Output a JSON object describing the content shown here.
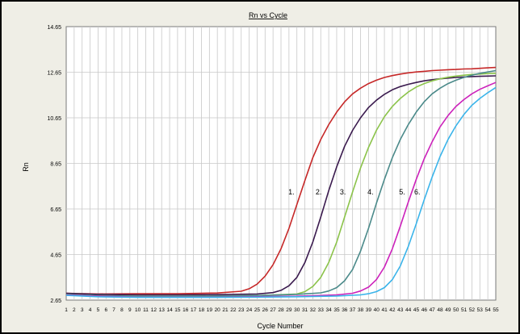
{
  "chart_data": {
    "type": "line",
    "title": "Rn vs Cycle",
    "xlabel": "Cycle Number",
    "ylabel": "Rn",
    "xlim": [
      1,
      55
    ],
    "ylim": [
      2.65,
      14.65
    ],
    "yticks": [
      "14.65",
      "12.65",
      "10.65",
      "8.65",
      "6.65",
      "4.65",
      "2.65"
    ],
    "xticks": [
      "1",
      "2",
      "3",
      "4",
      "5",
      "6",
      "7",
      "8",
      "9",
      "10",
      "11",
      "12",
      "13",
      "14",
      "15",
      "16",
      "17",
      "18",
      "19",
      "20",
      "21",
      "22",
      "23",
      "24",
      "25",
      "26",
      "27",
      "28",
      "29",
      "30",
      "31",
      "32",
      "33",
      "34",
      "35",
      "36",
      "37",
      "38",
      "39",
      "40",
      "41",
      "42",
      "43",
      "44",
      "45",
      "46",
      "47",
      "48",
      "49",
      "50",
      "51",
      "52",
      "53",
      "54",
      "55"
    ],
    "grid": true,
    "series": [
      {
        "label": "1.",
        "color": "#c62828",
        "x": [
          1,
          5,
          10,
          15,
          20,
          23,
          24,
          25,
          26,
          27,
          28,
          29,
          30,
          31,
          32,
          33,
          34,
          35,
          36,
          37,
          38,
          39,
          40,
          41,
          42,
          43,
          44,
          45,
          46,
          47,
          48,
          49,
          50,
          51,
          52,
          53,
          54,
          55
        ],
        "values": [
          2.95,
          2.92,
          2.93,
          2.93,
          2.96,
          3.04,
          3.15,
          3.35,
          3.7,
          4.2,
          4.9,
          5.8,
          6.85,
          7.9,
          8.9,
          9.7,
          10.35,
          10.9,
          11.35,
          11.7,
          11.95,
          12.15,
          12.3,
          12.42,
          12.5,
          12.57,
          12.62,
          12.66,
          12.69,
          12.72,
          12.74,
          12.76,
          12.77,
          12.79,
          12.8,
          12.82,
          12.84,
          12.86
        ]
      },
      {
        "label": "2.",
        "color": "#3a1a4e",
        "x": [
          1,
          5,
          10,
          15,
          20,
          25,
          27,
          28,
          29,
          30,
          31,
          32,
          33,
          34,
          35,
          36,
          37,
          38,
          39,
          40,
          41,
          42,
          43,
          44,
          45,
          46,
          47,
          48,
          49,
          50,
          51,
          52,
          53,
          54,
          55
        ],
        "values": [
          2.95,
          2.9,
          2.88,
          2.88,
          2.89,
          2.92,
          2.98,
          3.08,
          3.28,
          3.65,
          4.3,
          5.2,
          6.3,
          7.45,
          8.5,
          9.4,
          10.1,
          10.65,
          11.1,
          11.42,
          11.68,
          11.88,
          12.02,
          12.12,
          12.2,
          12.27,
          12.32,
          12.36,
          12.39,
          12.42,
          12.44,
          12.46,
          12.47,
          12.48,
          12.49
        ]
      },
      {
        "label": "3.",
        "color": "#8bc34a",
        "x": [
          1,
          5,
          10,
          15,
          20,
          25,
          30,
          31,
          32,
          33,
          34,
          35,
          36,
          37,
          38,
          39,
          40,
          41,
          42,
          43,
          44,
          45,
          46,
          47,
          48,
          49,
          50,
          51,
          52,
          53,
          54,
          55
        ],
        "values": [
          2.9,
          2.85,
          2.82,
          2.82,
          2.83,
          2.85,
          2.92,
          3.02,
          3.25,
          3.65,
          4.3,
          5.2,
          6.3,
          7.4,
          8.45,
          9.35,
          10.1,
          10.7,
          11.15,
          11.5,
          11.78,
          12.0,
          12.15,
          12.27,
          12.36,
          12.43,
          12.48,
          12.52,
          12.55,
          12.57,
          12.59,
          12.6
        ]
      },
      {
        "label": "4.",
        "color": "#4b8a8a",
        "x": [
          1,
          5,
          10,
          15,
          20,
          25,
          30,
          33,
          34,
          35,
          36,
          37,
          38,
          39,
          40,
          41,
          42,
          43,
          44,
          45,
          46,
          47,
          48,
          49,
          50,
          51,
          52,
          53,
          54,
          55
        ],
        "values": [
          2.9,
          2.85,
          2.82,
          2.82,
          2.83,
          2.85,
          2.9,
          2.97,
          3.05,
          3.2,
          3.5,
          4.0,
          4.8,
          5.8,
          6.9,
          7.95,
          8.9,
          9.7,
          10.35,
          10.9,
          11.35,
          11.7,
          11.95,
          12.15,
          12.3,
          12.42,
          12.52,
          12.6,
          12.66,
          12.72
        ]
      },
      {
        "label": "5.",
        "color": "#cc22bb",
        "x": [
          1,
          5,
          10,
          15,
          20,
          25,
          30,
          35,
          37,
          38,
          39,
          40,
          41,
          42,
          43,
          44,
          45,
          46,
          47,
          48,
          49,
          50,
          51,
          52,
          53,
          54,
          55
        ],
        "values": [
          2.88,
          2.82,
          2.78,
          2.78,
          2.78,
          2.8,
          2.82,
          2.88,
          2.95,
          3.05,
          3.22,
          3.55,
          4.1,
          4.9,
          5.9,
          6.95,
          7.95,
          8.85,
          9.6,
          10.25,
          10.75,
          11.15,
          11.45,
          11.7,
          11.9,
          12.05,
          12.2
        ]
      },
      {
        "label": "6.",
        "color": "#3ab4ea",
        "x": [
          1,
          5,
          10,
          15,
          20,
          25,
          30,
          35,
          38,
          39,
          40,
          41,
          42,
          43,
          44,
          45,
          46,
          47,
          48,
          49,
          50,
          51,
          52,
          53,
          54,
          55
        ],
        "values": [
          2.86,
          2.8,
          2.77,
          2.77,
          2.77,
          2.78,
          2.8,
          2.83,
          2.88,
          2.93,
          3.02,
          3.2,
          3.55,
          4.15,
          5.0,
          6.0,
          7.05,
          8.05,
          8.95,
          9.7,
          10.3,
          10.8,
          11.2,
          11.5,
          11.75,
          11.98
        ]
      }
    ]
  }
}
